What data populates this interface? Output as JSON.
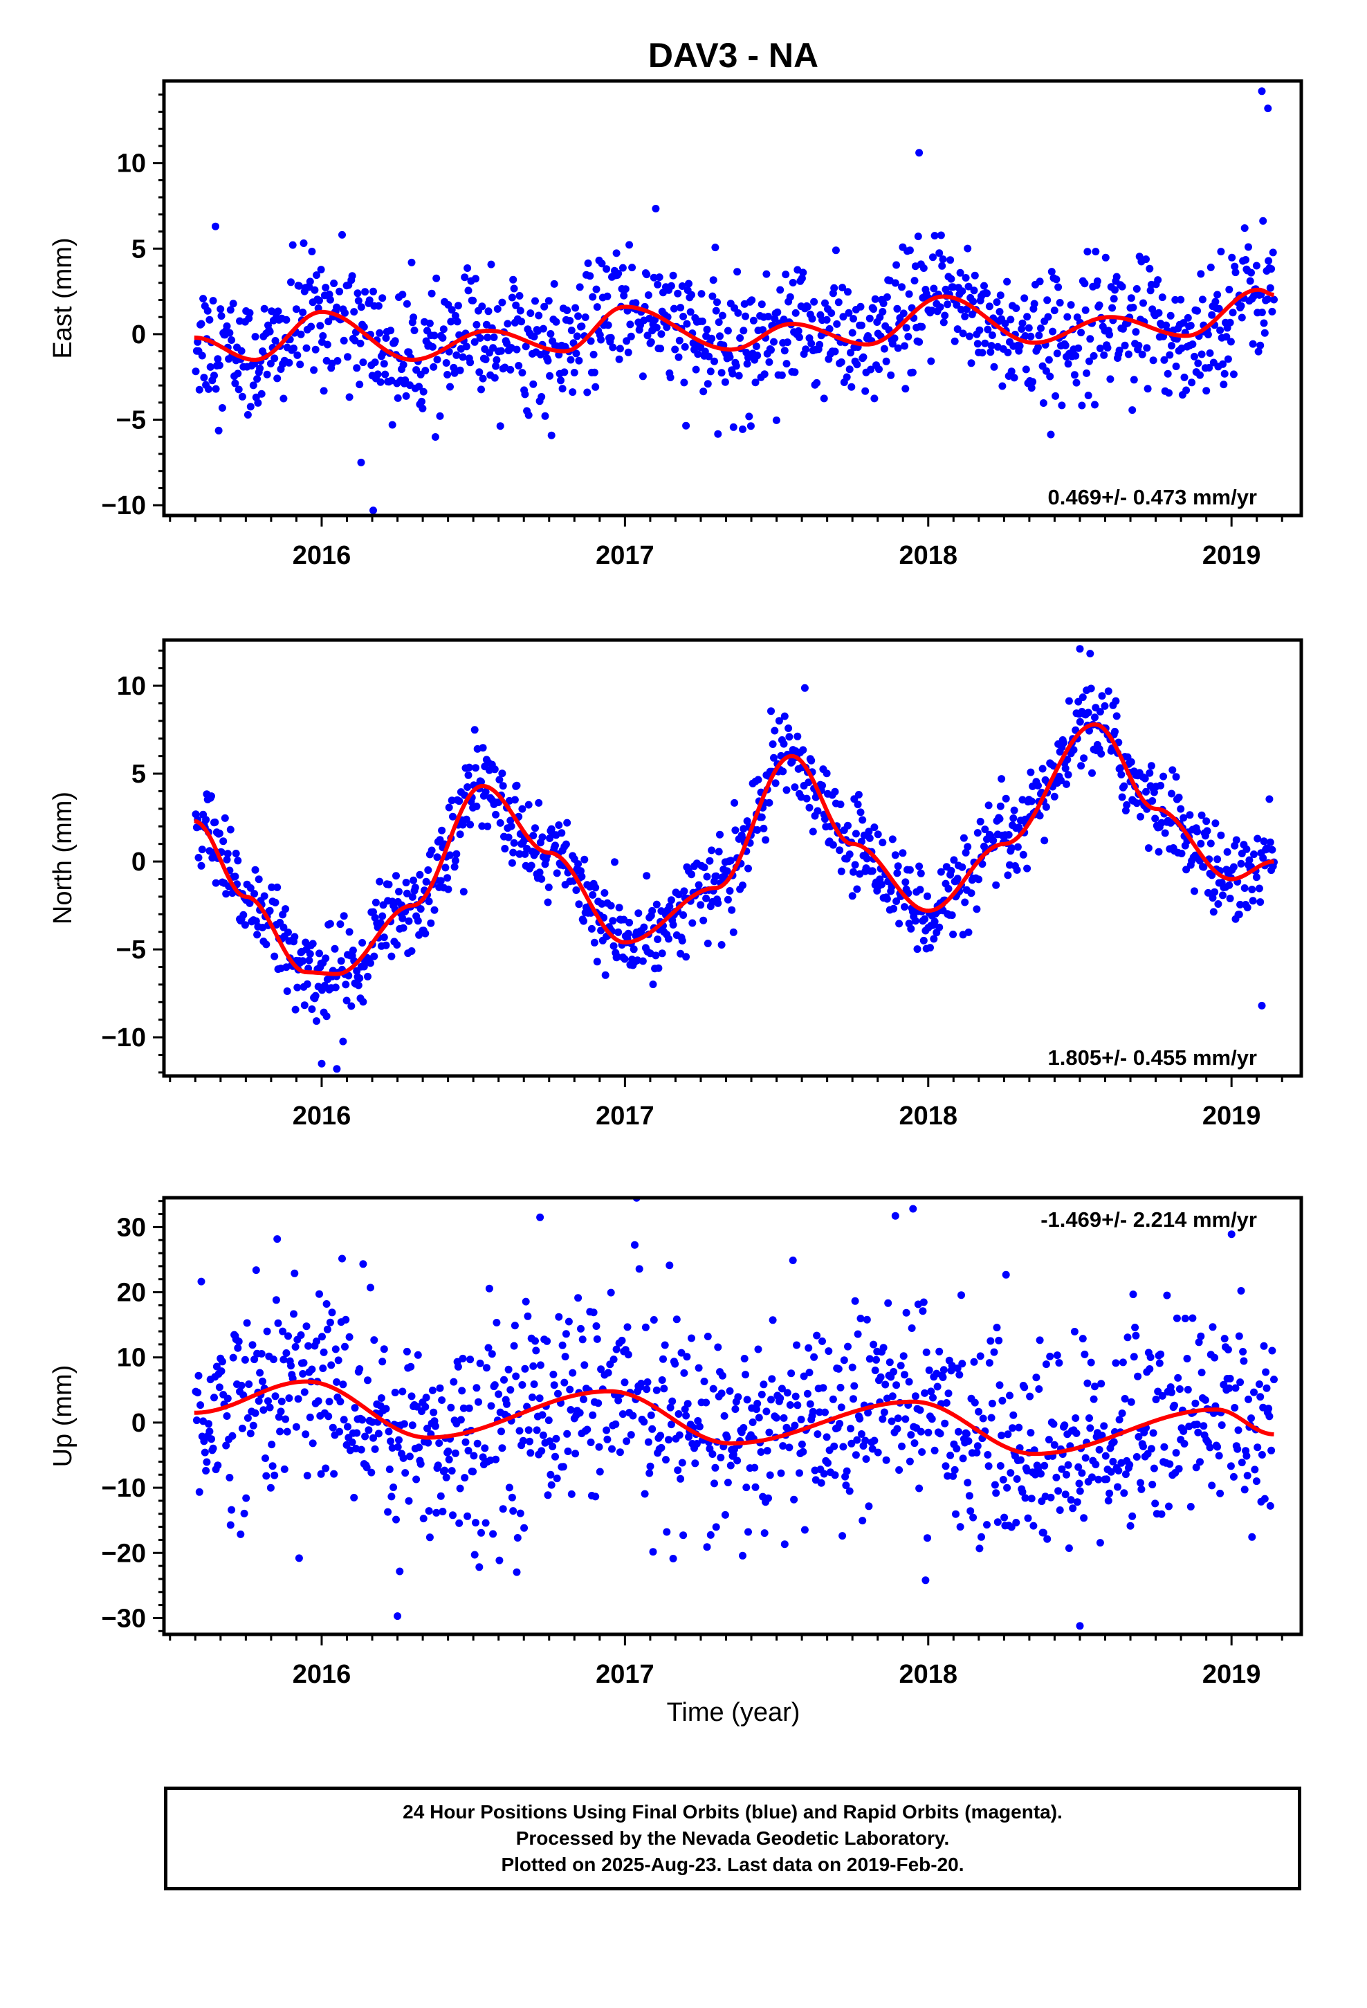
{
  "title": "DAV3 - NA",
  "xlabel": "Time (year)",
  "colors": {
    "points": "#0000ff",
    "fit": "#ff0000",
    "axes": "#000000"
  },
  "footer": {
    "line1": "24 Hour Positions Using Final Orbits (blue) and Rapid Orbits (magenta).",
    "line2": "Processed by the Nevada Geodetic Laboratory.",
    "line3": "Plotted on 2025-Aug-23. Last data on 2019-Feb-20."
  },
  "chart_data": [
    {
      "type": "scatter",
      "title": "DAV3 - NA",
      "ylabel": "East (mm)",
      "xlim": [
        2015.48,
        2019.23
      ],
      "ylim": [
        -10.6,
        14.8
      ],
      "x_ticks": [
        2016,
        2017,
        2018,
        2019
      ],
      "y_ticks": [
        -10,
        -5,
        0,
        5,
        10
      ],
      "rate_label": "0.469+/- 0.473 mm/yr",
      "rate_position": "bottom-right",
      "grid": false,
      "fit": {
        "name": "",
        "x_start": 2015.58,
        "x_end": 2019.14,
        "offset": -0.2,
        "rate": 0.469,
        "annual": [
          [
            2015.58,
            -0.2
          ],
          [
            2015.78,
            -1.5
          ],
          [
            2016.0,
            1.3
          ],
          [
            2016.3,
            -1.5
          ],
          [
            2016.55,
            0.2
          ],
          [
            2016.8,
            -1.0
          ],
          [
            2017.0,
            1.6
          ],
          [
            2017.35,
            -0.9
          ],
          [
            2017.55,
            0.6
          ],
          [
            2017.8,
            -0.6
          ],
          [
            2018.05,
            2.2
          ],
          [
            2018.35,
            -0.5
          ],
          [
            2018.6,
            1.0
          ],
          [
            2018.85,
            -0.1
          ],
          [
            2019.09,
            2.6
          ],
          [
            2019.14,
            2.3
          ]
        ]
      },
      "series": [
        {
          "name": "",
          "n_points": 1180,
          "sigma": 1.9,
          "outliers": [
            [
              2017.97,
              10.6
            ],
            [
              2016.17,
              -10.3
            ],
            [
              2016.13,
              -7.5
            ],
            [
              2015.65,
              6.3
            ],
            [
              2019.1,
              14.2
            ],
            [
              2019.12,
              13.2
            ]
          ]
        }
      ]
    },
    {
      "type": "scatter",
      "ylabel": "North (mm)",
      "xlim": [
        2015.48,
        2019.23
      ],
      "ylim": [
        -12.2,
        12.6
      ],
      "x_ticks": [
        2016,
        2017,
        2018,
        2019
      ],
      "y_ticks": [
        -10,
        -5,
        0,
        5,
        10
      ],
      "rate_label": "1.805+/- 0.455 mm/yr",
      "rate_position": "bottom-right",
      "grid": false,
      "fit": {
        "name": "",
        "annual": [
          [
            2015.58,
            2.3
          ],
          [
            2015.75,
            -2.0
          ],
          [
            2015.95,
            -6.3
          ],
          [
            2016.05,
            -6.4
          ],
          [
            2016.3,
            -2.5
          ],
          [
            2016.53,
            4.3
          ],
          [
            2016.75,
            0.5
          ],
          [
            2017.0,
            -4.6
          ],
          [
            2017.3,
            -1.5
          ],
          [
            2017.55,
            6.0
          ],
          [
            2017.75,
            1.0
          ],
          [
            2018.0,
            -2.8
          ],
          [
            2018.25,
            1.0
          ],
          [
            2018.55,
            7.8
          ],
          [
            2018.75,
            3.0
          ],
          [
            2019.0,
            -1.0
          ],
          [
            2019.14,
            0.0
          ]
        ]
      },
      "series": [
        {
          "name": "",
          "n_points": 1180,
          "sigma": 1.3,
          "outliers": [
            [
              2018.5,
              12.1
            ],
            [
              2016.0,
              -11.5
            ],
            [
              2016.05,
              -11.8
            ],
            [
              2019.1,
              -8.2
            ]
          ]
        }
      ]
    },
    {
      "type": "scatter",
      "ylabel": "Up (mm)",
      "xlim": [
        2015.48,
        2019.23
      ],
      "ylim": [
        -32.5,
        34.5
      ],
      "x_ticks": [
        2016,
        2017,
        2018,
        2019
      ],
      "y_ticks": [
        -30,
        -20,
        -10,
        0,
        10,
        20,
        30
      ],
      "rate_label": "-1.469+/- 2.214 mm/yr",
      "rate_position": "top-right",
      "grid": false,
      "fit": {
        "name": "",
        "annual": [
          [
            2015.58,
            1.5
          ],
          [
            2015.95,
            6.3
          ],
          [
            2016.35,
            -2.3
          ],
          [
            2016.95,
            4.8
          ],
          [
            2017.35,
            -3.2
          ],
          [
            2017.95,
            3.2
          ],
          [
            2018.35,
            -4.8
          ],
          [
            2018.95,
            2.0
          ],
          [
            2019.14,
            -1.8
          ]
        ]
      },
      "series": [
        {
          "name": "",
          "n_points": 1180,
          "sigma": 8.0,
          "outliers": [
            [
              2017.95,
              32.8
            ],
            [
              2016.72,
              31.5
            ],
            [
              2018.5,
              -31.2
            ],
            [
              2016.25,
              -29.7
            ],
            [
              2019.0,
              28.9
            ]
          ]
        }
      ]
    }
  ]
}
